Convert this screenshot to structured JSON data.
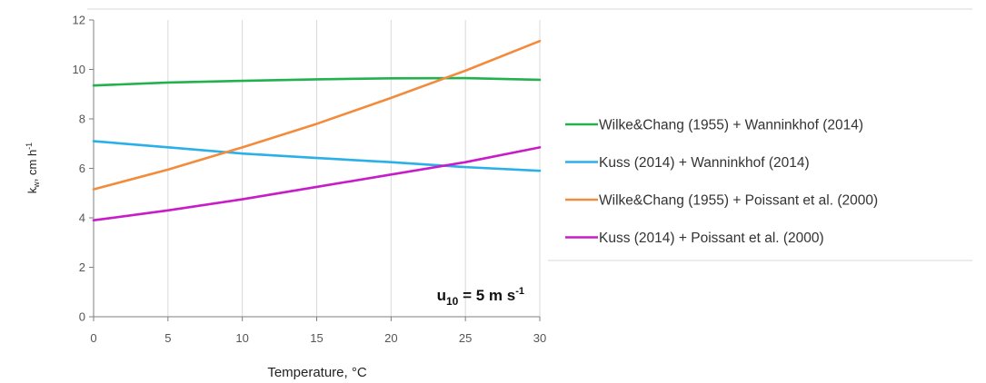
{
  "chart_data": {
    "type": "line",
    "xlabel": "Temperature, °C",
    "ylabel": {
      "main": "k",
      "sub": "w",
      "mid": ", cm h",
      "sup": "-1"
    },
    "xlim": [
      0,
      30
    ],
    "ylim": [
      0,
      12
    ],
    "xticks": [
      0,
      5,
      10,
      15,
      20,
      25,
      30
    ],
    "yticks": [
      0,
      2,
      4,
      6,
      8,
      10,
      12
    ],
    "grid": {
      "vertical": true,
      "horizontal": false
    },
    "legend_position": "right",
    "annotation": {
      "main": "u",
      "sub": "10",
      "mid": " = 5 m s",
      "sup": "-1"
    },
    "series": [
      {
        "name": "Wilke&Chang (1955) + Wanninkhof (2014)",
        "color": "#22b14c",
        "x": [
          0,
          5,
          10,
          15,
          20,
          25,
          30
        ],
        "y": [
          9.35,
          9.47,
          9.54,
          9.6,
          9.64,
          9.65,
          9.58
        ]
      },
      {
        "name": "Kuss (2014) + Wanninkhof (2014)",
        "color": "#2ab0e8",
        "x": [
          0,
          5,
          10,
          15,
          20,
          25,
          30
        ],
        "y": [
          7.1,
          6.85,
          6.6,
          6.42,
          6.25,
          6.05,
          5.9
        ]
      },
      {
        "name": "Wilke&Chang (1955) + Poissant et al. (2000)",
        "color": "#f28c3c",
        "x": [
          0,
          5,
          10,
          15,
          20,
          25,
          30
        ],
        "y": [
          5.15,
          5.95,
          6.85,
          7.8,
          8.85,
          9.95,
          11.15
        ]
      },
      {
        "name": "Kuss (2014) + Poissant et al. (2000)",
        "color": "#c81cc8",
        "x": [
          0,
          5,
          10,
          15,
          20,
          25,
          30
        ],
        "y": [
          3.9,
          4.3,
          4.75,
          5.25,
          5.75,
          6.25,
          6.85
        ]
      }
    ]
  }
}
